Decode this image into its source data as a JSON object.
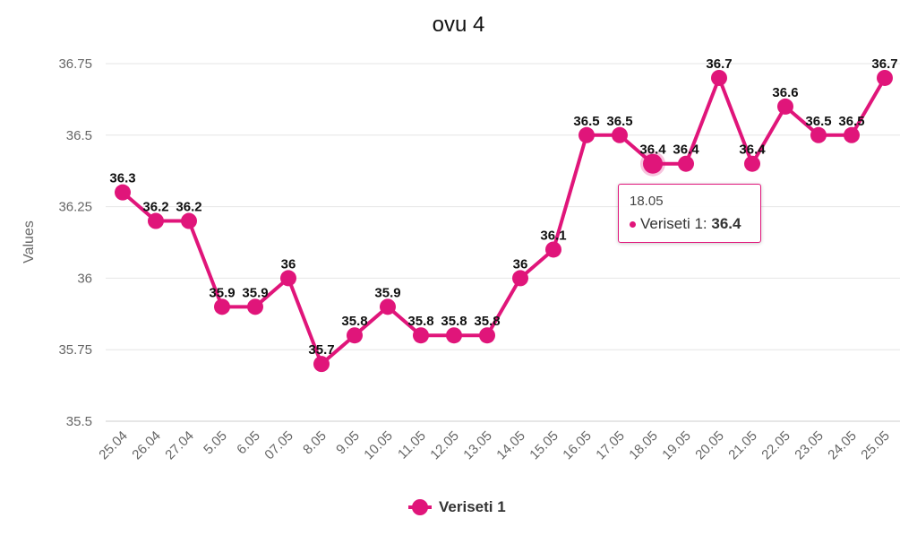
{
  "chart_data": {
    "type": "line",
    "title": "ovu 4",
    "xlabel": "",
    "ylabel": "Values",
    "ylim": [
      35.5,
      36.75
    ],
    "yticks": [
      "36.75",
      "36.5",
      "36.25",
      "36",
      "35.75",
      "35.5"
    ],
    "grid": true,
    "legend_position": "bottom",
    "categories": [
      "25.04",
      "26.04",
      "27.04",
      "5.05",
      "6.05",
      "07.05",
      "8.05",
      "9.05",
      "10.05",
      "11.05",
      "12.05",
      "13.05",
      "14.05",
      "15.05",
      "16.05",
      "17.05",
      "18.05",
      "19.05",
      "20.05",
      "21.05",
      "22.05",
      "23.05",
      "24.05",
      "25.05"
    ],
    "series": [
      {
        "name": "Veriseti 1",
        "color": "#e0157a",
        "values": [
          36.3,
          36.2,
          36.2,
          35.9,
          35.9,
          36,
          35.7,
          35.8,
          35.9,
          35.8,
          35.8,
          35.8,
          36,
          36.1,
          36.5,
          36.5,
          36.4,
          36.4,
          36.7,
          36.4,
          36.6,
          36.5,
          36.5,
          36.7
        ]
      }
    ],
    "tooltip": {
      "category": "18.05",
      "series": "Veriseti 1",
      "label": "Veriseti 1: ",
      "value": "36.4"
    }
  }
}
